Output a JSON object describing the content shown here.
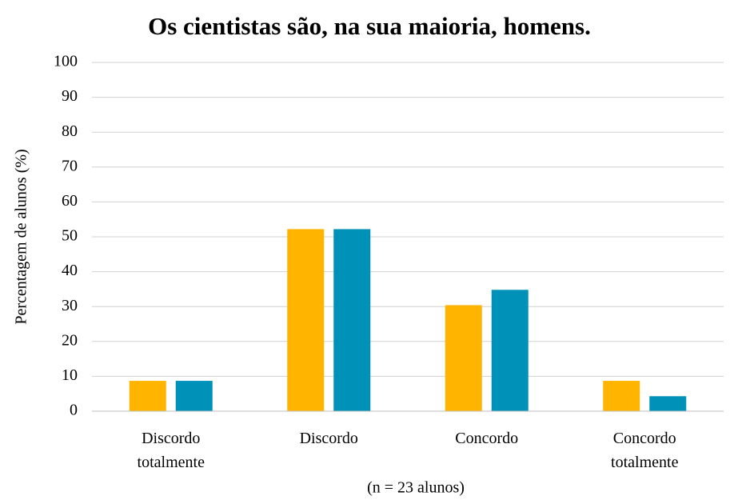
{
  "chart_data": {
    "type": "bar",
    "title": "Os cientistas são, na sua maioria,  homens.",
    "y_label": "Percentagem de alunos (%)",
    "x_label": "(n = 23 alunos)",
    "categories": [
      "Discordo totalmente",
      "Discordo",
      "Concordo",
      "Concordo totalmente"
    ],
    "series": [
      {
        "color": "#FFB400",
        "values": [
          8.7,
          52.2,
          30.4,
          8.7
        ]
      },
      {
        "color": "#0091B9",
        "values": [
          8.7,
          52.2,
          34.8,
          4.3
        ]
      }
    ],
    "ylim": [
      0,
      100
    ],
    "yticks": [
      0,
      10,
      20,
      30,
      40,
      50,
      60,
      70,
      80,
      90,
      100
    ],
    "grid": true
  }
}
